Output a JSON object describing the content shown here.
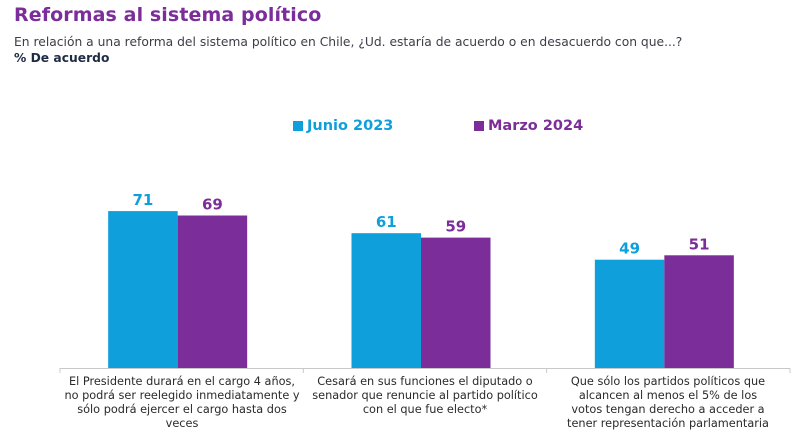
{
  "header": {
    "title": "Reformas al sistema político",
    "subtitle": "En relación a una reforma del sistema político en Chile, ¿Ud. estaría de acuerdo o en desacuerdo con que...?",
    "unit": "% De acuerdo"
  },
  "colors": {
    "title": "#7b2d9a",
    "series_junio": "#0f9fdb",
    "series_marzo": "#7b2d9a",
    "axis": "#c8c8c8"
  },
  "chart_data": {
    "type": "bar",
    "title": "Reformas al sistema político",
    "subtitle": "En relación a una reforma del sistema político en Chile, ¿Ud. estaría de acuerdo o en desacuerdo con que...?",
    "ylabel": "% De acuerdo",
    "xlabel": "",
    "ylim": [
      0,
      100
    ],
    "grid": false,
    "legend_position": "top-center",
    "categories": [
      "El Presidente durará en el cargo 4 años, no podrá ser reelegido inmediatamente y sólo podrá ejercer el cargo hasta dos veces",
      "Cesará en sus funciones el diputado o senador que renuncie al partido político con el que fue electo*",
      "Que sólo los partidos políticos que alcancen al menos el 5% de los votos tengan derecho a acceder a tener representación parlamentaria"
    ],
    "series": [
      {
        "name": "Junio 2023",
        "color": "#0f9fdb",
        "values": [
          71,
          61,
          49
        ]
      },
      {
        "name": "Marzo 2024",
        "color": "#7b2d9a",
        "values": [
          69,
          59,
          51
        ]
      }
    ]
  }
}
